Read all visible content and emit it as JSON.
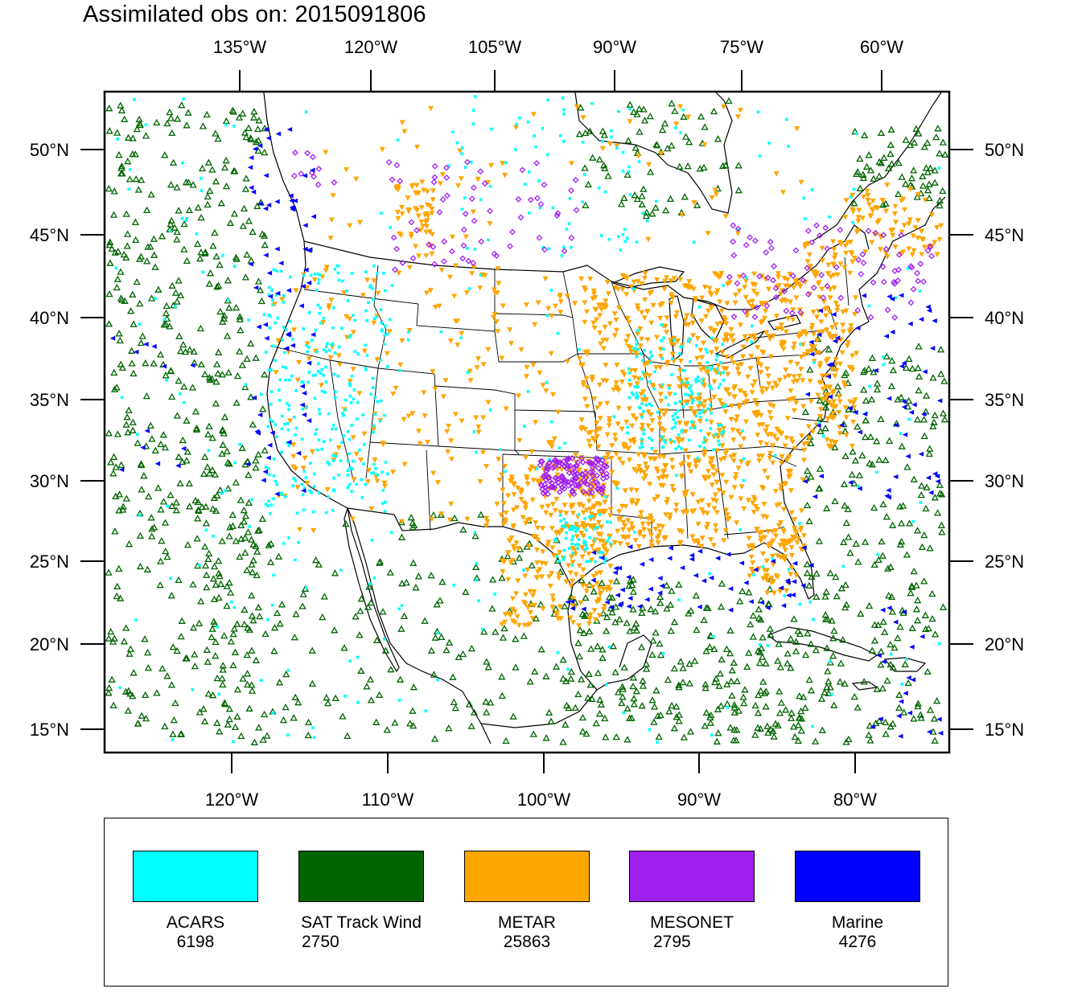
{
  "title": "Assimilated obs on: 2015091806",
  "top_axis": {
    "labels": [
      "135°W",
      "120°W",
      "105°W",
      "90°W",
      "75°W",
      "60°W"
    ]
  },
  "bottom_axis": {
    "labels": [
      "120°W",
      "110°W",
      "100°W",
      "90°W",
      "80°W"
    ]
  },
  "left_axis": {
    "labels": [
      "50°N",
      "45°N",
      "40°N",
      "35°N",
      "30°N",
      "25°N",
      "20°N",
      "15°N"
    ]
  },
  "right_axis": {
    "labels": [
      "50°N",
      "45°N",
      "40°N",
      "35°N",
      "30°N",
      "25°N",
      "20°N",
      "15°N"
    ]
  },
  "legend": {
    "items": [
      {
        "name": "ACARS",
        "count": "6198",
        "color": "#00ffff",
        "marker": "small-square"
      },
      {
        "name": "SAT Track Wind",
        "count": "2750",
        "color": "#006400",
        "marker": "open-triangle-up"
      },
      {
        "name": "METAR",
        "count": "25863",
        "color": "#ffa500",
        "marker": "filled-triangle-down"
      },
      {
        "name": "MESONET",
        "count": "2795",
        "color": "#a020f0",
        "marker": "open-diamond"
      },
      {
        "name": "Marine",
        "count": "4276",
        "color": "#0000ff",
        "marker": "filled-triangle-left"
      }
    ]
  }
}
